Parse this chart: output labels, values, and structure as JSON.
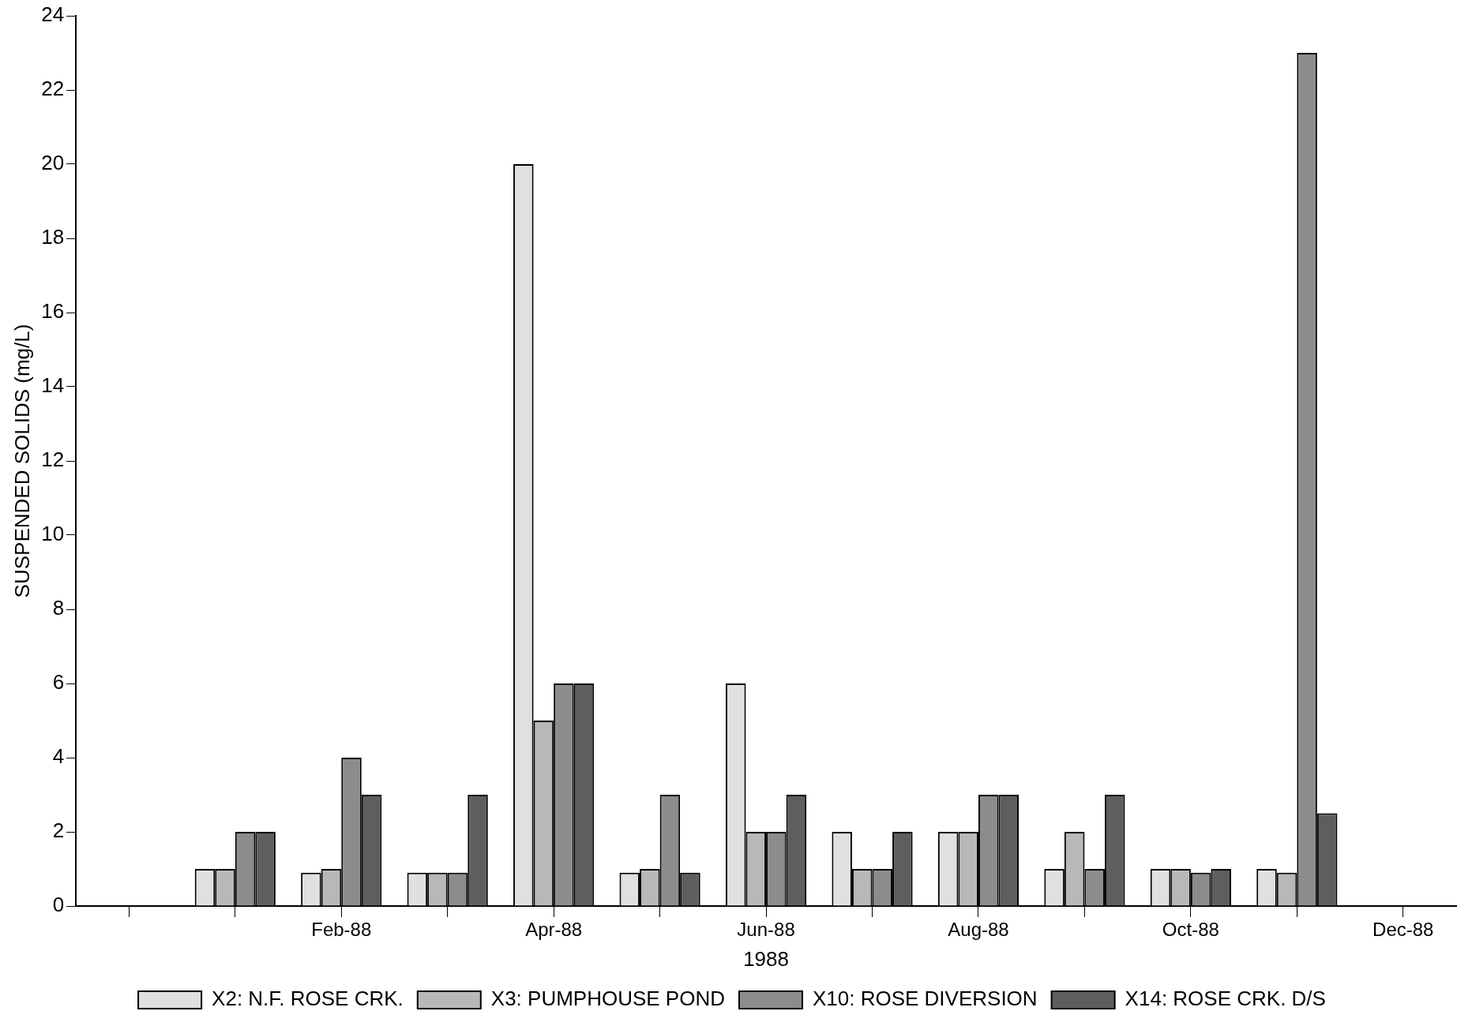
{
  "chart_data": {
    "type": "bar",
    "xlabel": "1988",
    "ylabel": "SUSPENDED SOLIDS (mg/L)",
    "categories": [
      null,
      null,
      "Feb-88",
      null,
      "Apr-88",
      null,
      "Jun-88",
      null,
      "Aug-88",
      null,
      "Oct-88",
      null,
      "Dec-88"
    ],
    "series": [
      {
        "name": "X2: N.F. ROSE CRK.",
        "color": "#e0e0e0",
        "values": [
          null,
          1,
          0.9,
          0.9,
          20,
          0.9,
          6,
          2,
          2,
          1,
          1,
          1,
          null
        ]
      },
      {
        "name": "X3: PUMPHOUSE POND",
        "color": "#b8b8b8",
        "values": [
          null,
          1,
          1,
          0.9,
          5,
          1,
          2,
          1,
          2,
          2,
          1,
          0.9,
          null
        ]
      },
      {
        "name": "X10: ROSE DIVERSION",
        "color": "#8c8c8c",
        "values": [
          null,
          2,
          4,
          0.9,
          6,
          3,
          2,
          1,
          3,
          1,
          0.9,
          23,
          null
        ]
      },
      {
        "name": "X14: ROSE CRK. D/S",
        "color": "#5e5e5e",
        "values": [
          null,
          2,
          3,
          3,
          6,
          0.9,
          3,
          2,
          3,
          3,
          1,
          2.5,
          null
        ]
      }
    ],
    "ylim": [
      0,
      24
    ],
    "yticks": [
      0,
      2,
      4,
      6,
      8,
      10,
      12,
      14,
      16,
      18,
      20,
      22,
      24
    ],
    "grid": false,
    "legend": "bottom"
  }
}
